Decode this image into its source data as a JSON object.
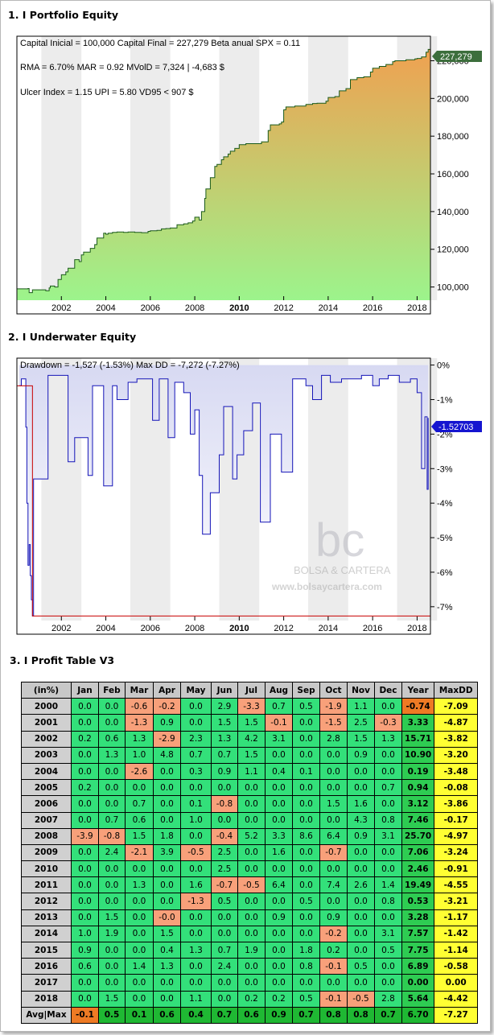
{
  "sections": {
    "s1": "1. I Portfolio Equity",
    "s2": "2. I Underwater Equity",
    "s3": "3. I Profit Table V3"
  },
  "equity": {
    "info_line1": "Capital Inicial = 100,000  Capital Final = 227,279   Beta anual SPX = 0.11",
    "info_line2": "RMA = 6.70%   MAR = 0.92   MVolD = 7,324 | -4,683 $",
    "info_line3": "Ulcer Index = 1.15   UPI = 5.80   VD95 < 907 $",
    "last_value_label": "227,279",
    "colors": {
      "fill_top": "#f0a050",
      "fill_bottom": "#9cf48c",
      "line": "#1a5a1a",
      "last_badge": "#3c6e3c"
    }
  },
  "underwater": {
    "info_line": "Drawdown = -1,527 (-1.53%)      Max DD = -7,272 (-7.27%)",
    "last_value_label": "-1.52703",
    "watermark_logo": "bc",
    "watermark_name": "BOLSA & CARTERA",
    "watermark_url": "www.bolsaycartera.com",
    "colors": {
      "line": "#1515b8",
      "badge": "#1515d0",
      "maxdd_line": "#c80000"
    }
  },
  "chart_data": [
    {
      "type": "area",
      "title": "",
      "x_tick_labels": [
        "2002",
        "2004",
        "2006",
        "2008",
        "2010",
        "2012",
        "2014",
        "2016",
        "2018"
      ],
      "y_tick_labels": [
        "100,000",
        "120,000",
        "140,000",
        "160,000",
        "180,000",
        "200,000",
        "220,000"
      ],
      "ylim": [
        93000,
        233000
      ],
      "xlim": [
        2000.0,
        2018.6
      ],
      "grid": false,
      "series": [
        {
          "x": [
            2000.0,
            2000.5,
            2000.55,
            2000.7,
            2001.0,
            2001.3,
            2001.45,
            2001.5,
            2001.7,
            2001.85,
            2002.0,
            2002.2,
            2002.3,
            2002.6,
            2002.8,
            2002.9,
            2003.0,
            2003.3,
            2003.5,
            2003.6,
            2003.9,
            2004.0,
            2004.1,
            2004.3,
            2004.5,
            2004.8,
            2005.0,
            2005.3,
            2005.6,
            2005.9,
            2006.0,
            2006.3,
            2006.5,
            2006.7,
            2006.9,
            2007.2,
            2007.5,
            2007.7,
            2007.9,
            2008.0,
            2008.2,
            2008.3,
            2008.45,
            2008.5,
            2008.7,
            2008.9,
            2009.0,
            2009.2,
            2009.3,
            2009.5,
            2009.6,
            2009.8,
            2010.0,
            2010.3,
            2010.6,
            2010.9,
            2011.0,
            2011.3,
            2011.4,
            2011.8,
            2011.9,
            2012.0,
            2012.1,
            2012.5,
            2013.0,
            2013.3,
            2013.5,
            2013.9,
            2014.0,
            2014.3,
            2014.5,
            2014.8,
            2015.0,
            2015.3,
            2015.6,
            2015.9,
            2016.0,
            2016.3,
            2016.6,
            2016.9,
            2017.0,
            2017.5,
            2017.9,
            2018.0,
            2018.2,
            2018.4,
            2018.5,
            2018.6
          ],
          "y": [
            99000,
            99200,
            97000,
            98500,
            98500,
            98000,
            99500,
            100500,
            100000,
            104000,
            106500,
            108000,
            110000,
            114500,
            113500,
            117000,
            118500,
            120500,
            122500,
            126000,
            128500,
            128000,
            128500,
            129000,
            129200,
            129000,
            129200,
            129000,
            128800,
            129500,
            129800,
            130000,
            130800,
            131000,
            131300,
            133000,
            133500,
            134000,
            135000,
            137000,
            135500,
            140000,
            147000,
            152000,
            158000,
            164000,
            165000,
            167500,
            169000,
            170500,
            172000,
            173500,
            175500,
            176000,
            176000,
            176000,
            177000,
            183000,
            186000,
            186500,
            187500,
            194000,
            195500,
            196000,
            196800,
            197300,
            197500,
            198500,
            200500,
            201000,
            204000,
            205200,
            210000,
            211000,
            211500,
            214000,
            216000,
            217000,
            218000,
            219500,
            220000,
            220500,
            221000,
            221200,
            222000,
            224500,
            226000,
            227279
          ]
        }
      ]
    },
    {
      "type": "area",
      "title": "",
      "x_tick_labels": [
        "2002",
        "2004",
        "2006",
        "2008",
        "2010",
        "2012",
        "2014",
        "2016",
        "2018"
      ],
      "y_tick_labels": [
        "0%",
        "-1%",
        "-2%",
        "-3%",
        "-4%",
        "-5%",
        "-6%",
        "-7%"
      ],
      "ylim": [
        -7.4,
        0.2
      ],
      "xlim": [
        2000.0,
        2018.6
      ],
      "grid": false,
      "series": [
        {
          "x": [
            2000.1,
            2000.2,
            2000.4,
            2000.45,
            2000.5,
            2000.55,
            2000.6,
            2000.65,
            2000.7,
            2000.75,
            2001.4,
            2002.3,
            2002.6,
            2003.2,
            2003.4,
            2003.9,
            2004.3,
            2004.5,
            2005.0,
            2005.4,
            2006.1,
            2006.4,
            2006.8,
            2007.1,
            2007.5,
            2007.8,
            2008.0,
            2008.2,
            2008.35,
            2008.7,
            2009.1,
            2009.3,
            2009.7,
            2009.9,
            2010.2,
            2010.6,
            2010.95,
            2011.4,
            2011.9,
            2012.4,
            2013.0,
            2013.3,
            2013.7,
            2014.1,
            2014.6,
            2015.1,
            2015.5,
            2016.0,
            2016.3,
            2016.7,
            2017.2,
            2017.7,
            2018.0,
            2018.2,
            2018.35,
            2018.45,
            2018.5
          ],
          "y": [
            -0.6,
            -0.4,
            -1.8,
            -4.0,
            -5.8,
            -5.2,
            -6.1,
            -6.8,
            -7.27,
            -3.3,
            -0.3,
            -2.8,
            -2.1,
            -3.2,
            -0.6,
            -3.5,
            -0.6,
            -1.0,
            -0.5,
            -0.4,
            -1.6,
            -0.4,
            -2.1,
            -0.5,
            -0.8,
            -2.0,
            -1.3,
            -3.2,
            -4.9,
            -3.7,
            -2.6,
            -1.2,
            -3.3,
            -2.6,
            -1.9,
            -1.1,
            -4.55,
            -2.0,
            -3.1,
            -0.4,
            -0.6,
            -1.0,
            -0.3,
            -0.5,
            -0.4,
            -0.4,
            -0.3,
            -0.6,
            -0.4,
            -0.3,
            -0.5,
            -0.4,
            -0.8,
            -3.0,
            -1.5,
            -3.6,
            -1.53
          ]
        }
      ]
    },
    {
      "type": "table",
      "title": "",
      "columns": [
        "(in%)",
        "Jan",
        "Feb",
        "Mar",
        "Apr",
        "May",
        "Jun",
        "Jul",
        "Aug",
        "Sep",
        "Oct",
        "Nov",
        "Dec",
        "Year",
        "MaxDD"
      ],
      "rows": [
        [
          "2000",
          "0.0",
          "0.0",
          "-0.6",
          "-0.2",
          "0.0",
          "2.9",
          "-3.3",
          "0.7",
          "0.5",
          "-1.9",
          "1.1",
          "0.0",
          "-0.74",
          "-7.09"
        ],
        [
          "2001",
          "0.0",
          "0.0",
          "-1.3",
          "0.9",
          "0.0",
          "1.5",
          "1.5",
          "-0.1",
          "0.0",
          "-1.5",
          "2.5",
          "-0.3",
          "3.33",
          "-4.87"
        ],
        [
          "2002",
          "0.2",
          "0.6",
          "1.3",
          "-2.9",
          "2.3",
          "1.3",
          "4.2",
          "3.1",
          "0.0",
          "2.8",
          "1.5",
          "1.3",
          "15.71",
          "-3.82"
        ],
        [
          "2003",
          "0.0",
          "1.3",
          "1.0",
          "4.8",
          "0.7",
          "0.7",
          "1.5",
          "0.0",
          "0.0",
          "0.0",
          "0.9",
          "0.0",
          "10.90",
          "-3.20"
        ],
        [
          "2004",
          "0.0",
          "0.0",
          "-2.6",
          "0.0",
          "0.3",
          "0.9",
          "1.1",
          "0.4",
          "0.1",
          "0.0",
          "0.0",
          "0.0",
          "0.19",
          "-3.48"
        ],
        [
          "2005",
          "0.2",
          "0.0",
          "0.0",
          "0.0",
          "0.0",
          "0.0",
          "0.0",
          "0.0",
          "0.0",
          "0.0",
          "0.0",
          "0.7",
          "0.94",
          "-0.08"
        ],
        [
          "2006",
          "0.0",
          "0.0",
          "0.7",
          "0.0",
          "0.1",
          "-0.8",
          "0.0",
          "0.0",
          "0.0",
          "1.5",
          "1.6",
          "0.0",
          "3.12",
          "-3.86"
        ],
        [
          "2007",
          "0.0",
          "0.7",
          "0.6",
          "0.0",
          "1.0",
          "0.0",
          "0.0",
          "0.0",
          "0.0",
          "0.0",
          "4.3",
          "0.8",
          "7.46",
          "-0.17"
        ],
        [
          "2008",
          "-3.9",
          "-0.8",
          "1.5",
          "1.8",
          "0.0",
          "-0.4",
          "5.2",
          "3.3",
          "8.6",
          "6.4",
          "0.9",
          "3.1",
          "25.70",
          "-4.97"
        ],
        [
          "2009",
          "0.0",
          "2.4",
          "-2.1",
          "3.9",
          "-0.5",
          "2.5",
          "0.0",
          "1.6",
          "0.0",
          "-0.7",
          "0.0",
          "0.0",
          "7.06",
          "-3.24"
        ],
        [
          "2010",
          "0.0",
          "0.0",
          "0.0",
          "0.0",
          "0.0",
          "2.5",
          "0.0",
          "0.0",
          "0.0",
          "0.0",
          "0.0",
          "0.0",
          "2.46",
          "-0.91"
        ],
        [
          "2011",
          "0.0",
          "0.0",
          "1.3",
          "0.0",
          "1.6",
          "-0.7",
          "-0.5",
          "6.4",
          "0.0",
          "7.4",
          "2.6",
          "1.4",
          "19.49",
          "-4.55"
        ],
        [
          "2012",
          "0.0",
          "0.0",
          "0.0",
          "0.0",
          "-1.3",
          "0.5",
          "0.0",
          "0.0",
          "0.5",
          "0.0",
          "0.0",
          "0.8",
          "0.53",
          "-3.21"
        ],
        [
          "2013",
          "0.0",
          "1.5",
          "0.0",
          "-0.0",
          "0.0",
          "0.0",
          "0.0",
          "0.9",
          "0.0",
          "0.9",
          "0.0",
          "0.0",
          "3.28",
          "-1.17"
        ],
        [
          "2014",
          "1.0",
          "1.9",
          "0.0",
          "1.5",
          "0.0",
          "0.0",
          "0.0",
          "0.0",
          "0.0",
          "-0.2",
          "0.0",
          "3.1",
          "7.57",
          "-1.42"
        ],
        [
          "2015",
          "0.9",
          "0.0",
          "0.0",
          "0.4",
          "1.3",
          "0.7",
          "1.9",
          "0.0",
          "1.8",
          "0.2",
          "0.0",
          "0.5",
          "7.75",
          "-1.14"
        ],
        [
          "2016",
          "0.6",
          "0.0",
          "1.4",
          "1.3",
          "0.0",
          "2.4",
          "0.0",
          "0.0",
          "0.8",
          "-0.1",
          "0.5",
          "0.0",
          "6.89",
          "-0.58"
        ],
        [
          "2017",
          "0.0",
          "0.0",
          "0.0",
          "0.0",
          "0.0",
          "0.0",
          "0.0",
          "0.0",
          "0.0",
          "0.0",
          "0.0",
          "0.0",
          "0.00",
          "0.00"
        ],
        [
          "2018",
          "0.0",
          "1.5",
          "0.0",
          "0.0",
          "1.1",
          "0.0",
          "0.2",
          "0.2",
          "0.5",
          "-0.1",
          "-0.5",
          "2.8",
          "5.64",
          "-4.42"
        ],
        [
          "Avg|Max",
          "-0.1",
          "0.5",
          "0.1",
          "0.6",
          "0.4",
          "0.7",
          "0.6",
          "0.9",
          "0.7",
          "0.8",
          "0.8",
          "0.7",
          "6.70",
          "-7.27"
        ]
      ]
    }
  ]
}
